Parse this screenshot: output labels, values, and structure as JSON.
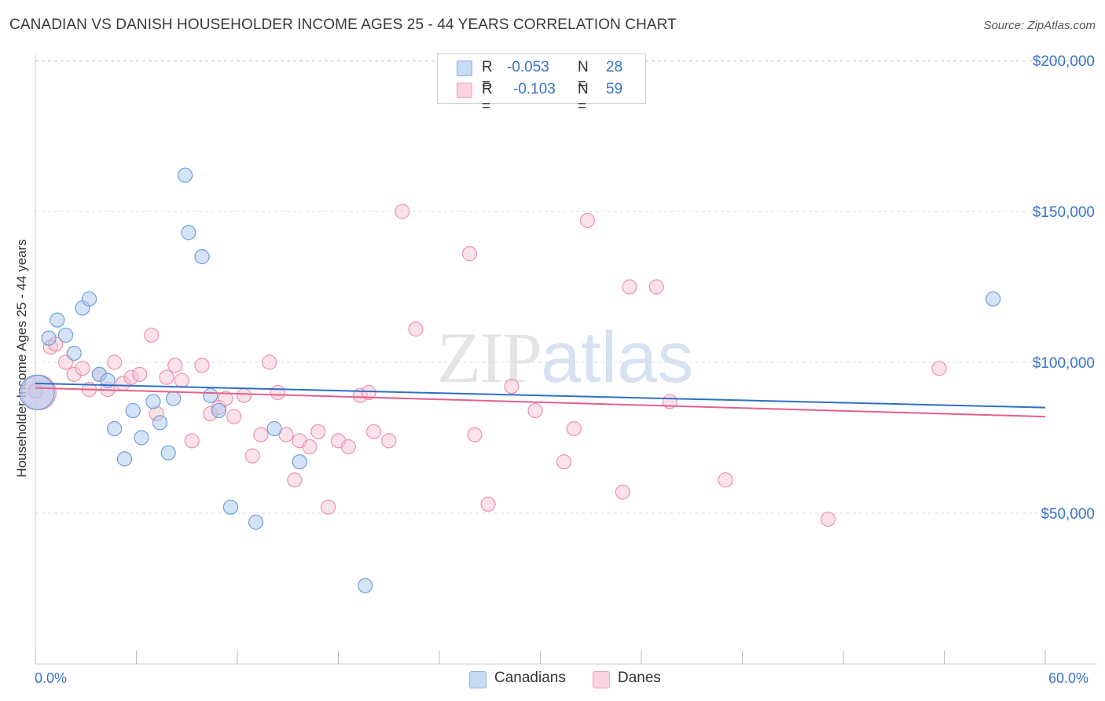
{
  "header": {
    "title": "CANADIAN VS DANISH HOUSEHOLDER INCOME AGES 25 - 44 YEARS CORRELATION CHART",
    "source": "Source: ZipAtlas.com"
  },
  "watermark": {
    "zip": "ZIP",
    "atlas": "atlas"
  },
  "legend": {
    "r_label": "R =",
    "n_label": "N =",
    "rows": [
      {
        "r": "-0.053",
        "n": "28",
        "color": "#a9c8f2"
      },
      {
        "r": "-0.103",
        "n": "59",
        "color": "#f7b8cb"
      }
    ]
  },
  "bottom_legend": [
    {
      "label": "Canadians",
      "color": "#a9c8f2"
    },
    {
      "label": "Danes",
      "color": "#f7b8cb"
    }
  ],
  "colors": {
    "canadians_fill": "#a9c8f2",
    "canadians_stroke": "#6f9fd8",
    "canadians_line": "#2f6fc8",
    "danes_fill": "#f7c3d2",
    "danes_stroke": "#ec93ae",
    "danes_line": "#e5608c",
    "axis_label": "#3a72c8",
    "grid": "#dddddd"
  },
  "chart_data": {
    "type": "scatter",
    "title": "CANADIAN VS DANISH HOUSEHOLDER INCOME AGES 25 - 44 YEARS CORRELATION CHART",
    "xlabel": "",
    "ylabel": "Householder Income Ages 25 - 44 years",
    "xlim": [
      0,
      60
    ],
    "ylim": [
      0,
      205000
    ],
    "x_tick_labels": [
      "0.0%",
      "60.0%"
    ],
    "y_ticks": [
      50000,
      100000,
      150000,
      200000
    ],
    "y_tick_labels": [
      "$50,000",
      "$100,000",
      "$150,000",
      "$200,000"
    ],
    "grid": "horizontal dashed",
    "legend_position": "top-center",
    "series": [
      {
        "name": "Canadians",
        "r": -0.053,
        "n": 28,
        "trend": {
          "x": [
            0,
            60
          ],
          "y": [
            93000,
            85000
          ]
        },
        "points": [
          [
            0.1,
            90000
          ],
          [
            0.8,
            108000
          ],
          [
            1.3,
            114000
          ],
          [
            1.8,
            109000
          ],
          [
            2.3,
            103000
          ],
          [
            2.8,
            118000
          ],
          [
            3.2,
            121000
          ],
          [
            3.8,
            96000
          ],
          [
            4.3,
            94000
          ],
          [
            4.7,
            78000
          ],
          [
            5.3,
            68000
          ],
          [
            5.8,
            84000
          ],
          [
            6.3,
            75000
          ],
          [
            7.0,
            87000
          ],
          [
            7.4,
            80000
          ],
          [
            7.9,
            70000
          ],
          [
            8.2,
            88000
          ],
          [
            8.9,
            162000
          ],
          [
            9.1,
            143000
          ],
          [
            9.9,
            135000
          ],
          [
            10.4,
            89000
          ],
          [
            10.9,
            84000
          ],
          [
            11.6,
            52000
          ],
          [
            13.1,
            47000
          ],
          [
            14.2,
            78000
          ],
          [
            15.7,
            67000
          ],
          [
            19.6,
            26000
          ],
          [
            56.9,
            121000
          ]
        ]
      },
      {
        "name": "Danes",
        "r": -0.103,
        "n": 59,
        "trend": {
          "x": [
            0,
            60
          ],
          "y": [
            91500,
            82000
          ]
        },
        "points": [
          [
            0.2,
            90000
          ],
          [
            0.9,
            105000
          ],
          [
            1.2,
            106000
          ],
          [
            1.8,
            100000
          ],
          [
            2.3,
            96000
          ],
          [
            2.8,
            98000
          ],
          [
            3.2,
            91000
          ],
          [
            3.8,
            96000
          ],
          [
            4.3,
            91000
          ],
          [
            4.7,
            100000
          ],
          [
            5.2,
            93000
          ],
          [
            5.7,
            95000
          ],
          [
            6.2,
            96000
          ],
          [
            6.9,
            109000
          ],
          [
            7.2,
            83000
          ],
          [
            7.8,
            95000
          ],
          [
            8.3,
            99000
          ],
          [
            8.7,
            94000
          ],
          [
            9.3,
            74000
          ],
          [
            9.9,
            99000
          ],
          [
            10.4,
            83000
          ],
          [
            10.9,
            85000
          ],
          [
            11.3,
            88000
          ],
          [
            11.8,
            82000
          ],
          [
            12.4,
            89000
          ],
          [
            12.9,
            69000
          ],
          [
            13.4,
            76000
          ],
          [
            13.9,
            100000
          ],
          [
            14.4,
            90000
          ],
          [
            14.9,
            76000
          ],
          [
            15.4,
            61000
          ],
          [
            15.7,
            74000
          ],
          [
            16.3,
            72000
          ],
          [
            16.8,
            77000
          ],
          [
            17.4,
            52000
          ],
          [
            18.0,
            74000
          ],
          [
            18.6,
            72000
          ],
          [
            19.3,
            89000
          ],
          [
            19.8,
            90000
          ],
          [
            20.1,
            77000
          ],
          [
            21.0,
            74000
          ],
          [
            21.8,
            150000
          ],
          [
            22.6,
            111000
          ],
          [
            25.8,
            136000
          ],
          [
            26.1,
            76000
          ],
          [
            26.9,
            53000
          ],
          [
            28.3,
            92000
          ],
          [
            29.7,
            84000
          ],
          [
            31.4,
            67000
          ],
          [
            32.0,
            78000
          ],
          [
            32.8,
            147000
          ],
          [
            34.9,
            57000
          ],
          [
            35.3,
            125000
          ],
          [
            36.9,
            125000
          ],
          [
            37.7,
            87000
          ],
          [
            41.0,
            61000
          ],
          [
            47.1,
            48000
          ],
          [
            53.7,
            98000
          ],
          [
            0.0,
            90500
          ]
        ]
      }
    ]
  }
}
